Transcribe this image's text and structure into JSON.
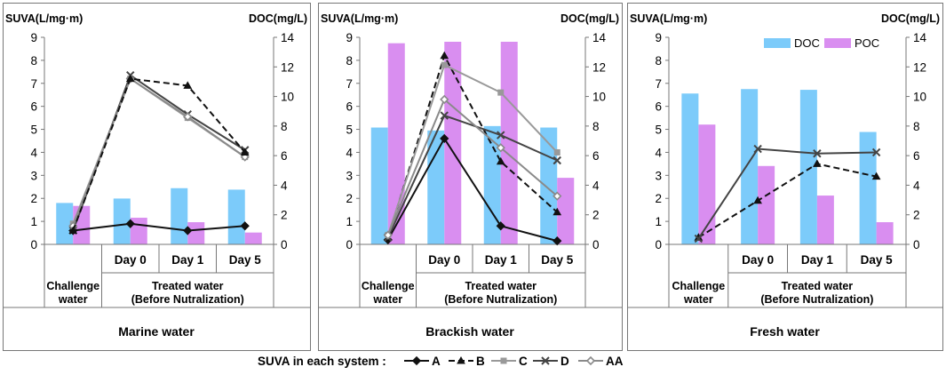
{
  "figure": {
    "legend_title": "SUVA in each system :"
  },
  "chart_data": [
    {
      "type": "bar",
      "title": "Marine water",
      "ylabel_left": "SUVA(L/mg·m)",
      "ylabel_right": "DOC(mg/L)",
      "ylim_left": [
        0,
        9
      ],
      "ylim_right": [
        0,
        14
      ],
      "categories": [
        "",
        "Day 0",
        "Day 1",
        "Day 5"
      ],
      "group_labels": [
        [
          "Challenge",
          "water"
        ],
        [
          "Treated water",
          "(Before Nutralization)"
        ]
      ],
      "bar_series": [
        {
          "name": "DOC",
          "color": "#7ccbfa",
          "axis": "right",
          "values": [
            2.8,
            3.1,
            3.8,
            3.7
          ]
        },
        {
          "name": "POC",
          "color": "#d98ef0",
          "axis": "right",
          "values": [
            2.6,
            1.8,
            1.5,
            0.8
          ]
        }
      ],
      "line_series": [
        {
          "name": "A",
          "values": [
            0.6,
            0.9,
            0.6,
            0.8
          ]
        },
        {
          "name": "C",
          "values": [
            0.9,
            7.2,
            5.5,
            3.8
          ]
        },
        {
          "name": "D",
          "values": [
            0.6,
            7.35,
            5.65,
            4.1
          ]
        },
        {
          "name": "AA",
          "values": [
            0.8,
            7.2,
            5.55,
            3.8
          ]
        },
        {
          "name": "B",
          "values": [
            0.6,
            7.2,
            6.9,
            4.0
          ]
        }
      ],
      "show_legend": false
    },
    {
      "type": "bar",
      "title": "Brackish water",
      "ylabel_left": "SUVA(L/mg·m)",
      "ylabel_right": "DOC(mg/L)",
      "ylim_left": [
        0,
        9
      ],
      "ylim_right": [
        0,
        14
      ],
      "categories": [
        "",
        "Day 0",
        "Day 1",
        "Day 5"
      ],
      "group_labels": [
        [
          "Challenge",
          "water"
        ],
        [
          "Treated water",
          "(Before Nutralization)"
        ]
      ],
      "bar_series": [
        {
          "name": "DOC",
          "color": "#7ccbfa",
          "axis": "right",
          "values": [
            7.9,
            7.7,
            8.0,
            7.9
          ]
        },
        {
          "name": "POC",
          "color": "#d98ef0",
          "axis": "right",
          "values": [
            13.6,
            13.7,
            13.7,
            4.5
          ]
        }
      ],
      "line_series": [
        {
          "name": "A",
          "values": [
            0.2,
            4.6,
            0.8,
            0.15
          ]
        },
        {
          "name": "B",
          "values": [
            0.3,
            8.2,
            3.6,
            1.4
          ]
        },
        {
          "name": "C",
          "values": [
            0.4,
            7.8,
            6.6,
            4.0
          ]
        },
        {
          "name": "D",
          "values": [
            0.3,
            5.6,
            4.75,
            3.65
          ]
        },
        {
          "name": "AA",
          "values": [
            0.4,
            6.3,
            4.2,
            2.1
          ]
        }
      ],
      "show_legend": false
    },
    {
      "type": "bar",
      "title": "Fresh water",
      "ylabel_left": "SUVA(L/mg·m)",
      "ylabel_right": "DOC(mg/L)",
      "ylim_left": [
        0,
        9
      ],
      "ylim_right": [
        0,
        14
      ],
      "categories": [
        "",
        "Day 0",
        "Day 1",
        "Day 5"
      ],
      "group_labels": [
        [
          "Challenge",
          "water"
        ],
        [
          "Treated water",
          "(Before Nutralization)"
        ]
      ],
      "bar_series": [
        {
          "name": "DOC",
          "color": "#7ccbfa",
          "axis": "right",
          "values": [
            10.2,
            10.5,
            10.45,
            7.6
          ]
        },
        {
          "name": "POC",
          "color": "#d98ef0",
          "axis": "right",
          "values": [
            8.1,
            5.3,
            3.3,
            1.5
          ]
        }
      ],
      "line_series": [
        {
          "name": "B",
          "values": [
            0.3,
            1.9,
            3.5,
            2.95
          ]
        },
        {
          "name": "D",
          "values": [
            0.25,
            4.15,
            3.95,
            4.0
          ]
        }
      ],
      "show_legend": true
    }
  ],
  "line_styles": [
    {
      "name": "A",
      "color": "#111111",
      "dash": "",
      "marker": "diamond",
      "label": "A"
    },
    {
      "name": "B",
      "color": "#111111",
      "dash": "7,4",
      "marker": "triangle",
      "label": "B"
    },
    {
      "name": "C",
      "color": "#999999",
      "dash": "",
      "marker": "square",
      "label": "C"
    },
    {
      "name": "D",
      "color": "#444444",
      "dash": "",
      "marker": "x",
      "label": "D"
    },
    {
      "name": "AA",
      "color": "#8a8a8a",
      "dash": "",
      "marker": "diamond-open",
      "label": "AA"
    }
  ]
}
